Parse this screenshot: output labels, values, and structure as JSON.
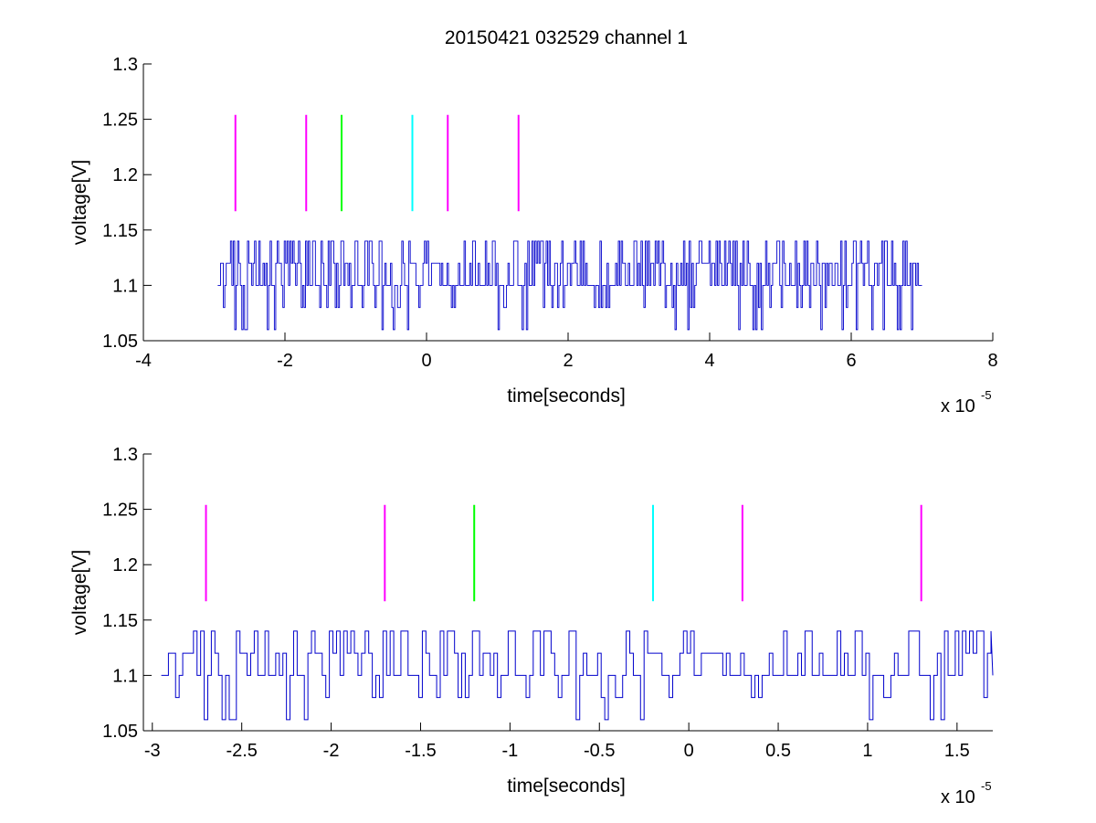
{
  "figure": {
    "title": "20150421 032529 channel 1",
    "exponent_base": "x 10",
    "exponent_power": "-5"
  },
  "chart_data": [
    {
      "type": "line",
      "title": "20150421 032529 channel 1",
      "xlabel": "time[seconds]",
      "ylabel": "voltage[V]",
      "x_multiplier": 1e-05,
      "xlim": [
        -4,
        8
      ],
      "ylim": [
        1.05,
        1.3
      ],
      "xticks": [
        -4,
        -2,
        0,
        2,
        4,
        6,
        8
      ],
      "xtick_labels": [
        "-4",
        "-2",
        "0",
        "2",
        "4",
        "6",
        "8"
      ],
      "yticks": [
        1.05,
        1.1,
        1.15,
        1.2,
        1.25,
        1.3
      ],
      "ytick_labels": [
        "1.05",
        "1.1",
        "1.15",
        "1.2",
        "1.25",
        "1.3"
      ],
      "grid": false,
      "signal": {
        "color": "#0000cc",
        "x_start": -2.95,
        "x_end": 7.0,
        "sample_step": 0.02,
        "levels": [
          1.06,
          1.08,
          1.1,
          1.12,
          1.14
        ],
        "dominant_level": 1.1
      },
      "markers": [
        {
          "x": -2.7,
          "y_bottom": 1.167,
          "y_top": 1.254,
          "color": "#ff00ff"
        },
        {
          "x": -1.7,
          "y_bottom": 1.167,
          "y_top": 1.254,
          "color": "#ff00ff"
        },
        {
          "x": -1.2,
          "y_bottom": 1.167,
          "y_top": 1.254,
          "color": "#00ff00"
        },
        {
          "x": -0.2,
          "y_bottom": 1.167,
          "y_top": 1.254,
          "color": "#00ffff"
        },
        {
          "x": 0.3,
          "y_bottom": 1.167,
          "y_top": 1.254,
          "color": "#ff00ff"
        },
        {
          "x": 1.3,
          "y_bottom": 1.167,
          "y_top": 1.254,
          "color": "#ff00ff"
        }
      ]
    },
    {
      "type": "line",
      "title": "",
      "xlabel": "time[seconds]",
      "ylabel": "voltage[V]",
      "x_multiplier": 1e-05,
      "xlim": [
        -3.05,
        1.7
      ],
      "ylim": [
        1.05,
        1.3
      ],
      "xticks": [
        -3,
        -2.5,
        -2,
        -1.5,
        -1,
        -0.5,
        0,
        0.5,
        1,
        1.5
      ],
      "xtick_labels": [
        "-3",
        "-2.5",
        "-2",
        "-1.5",
        "-1",
        "-0.5",
        "0",
        "0.5",
        "1",
        "1.5"
      ],
      "yticks": [
        1.05,
        1.1,
        1.15,
        1.2,
        1.25,
        1.3
      ],
      "ytick_labels": [
        "1.05",
        "1.1",
        "1.15",
        "1.2",
        "1.25",
        "1.3"
      ],
      "grid": false,
      "signal": {
        "color": "#0000cc",
        "x_start": -2.95,
        "x_end": 1.7,
        "sample_step": 0.02,
        "levels": [
          1.06,
          1.08,
          1.1,
          1.12,
          1.14
        ],
        "dominant_level": 1.1
      },
      "markers": [
        {
          "x": -2.7,
          "y_bottom": 1.167,
          "y_top": 1.254,
          "color": "#ff00ff"
        },
        {
          "x": -1.7,
          "y_bottom": 1.167,
          "y_top": 1.254,
          "color": "#ff00ff"
        },
        {
          "x": -1.2,
          "y_bottom": 1.167,
          "y_top": 1.254,
          "color": "#00ff00"
        },
        {
          "x": -0.2,
          "y_bottom": 1.167,
          "y_top": 1.254,
          "color": "#00ffff"
        },
        {
          "x": 0.3,
          "y_bottom": 1.167,
          "y_top": 1.254,
          "color": "#ff00ff"
        },
        {
          "x": 1.3,
          "y_bottom": 1.167,
          "y_top": 1.254,
          "color": "#ff00ff"
        }
      ]
    }
  ]
}
